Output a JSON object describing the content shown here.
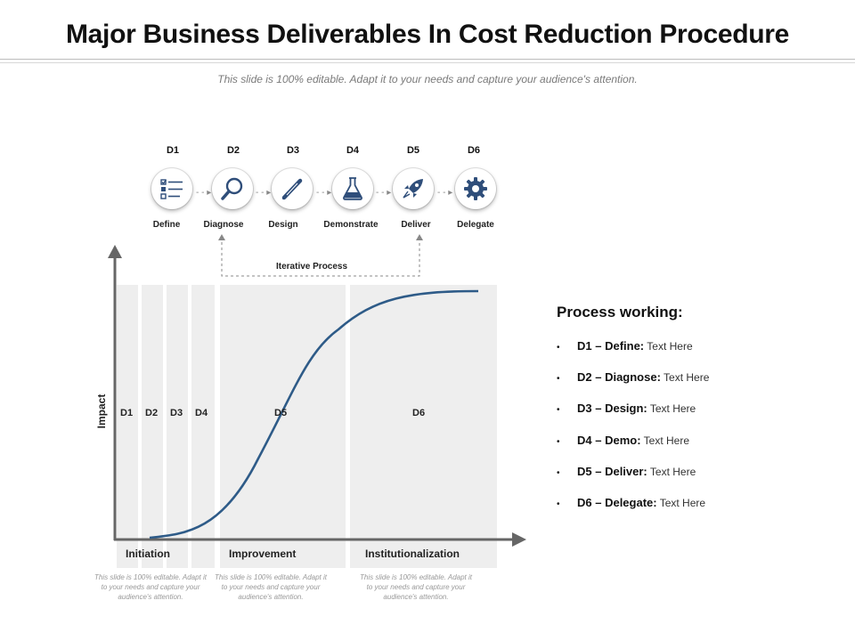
{
  "title": "Major Business Deliverables In Cost Reduction Procedure",
  "subtitle": "This slide is 100% editable. Adapt it to your needs and capture your audience's attention.",
  "steps": [
    {
      "code": "D1",
      "name": "Define",
      "icon": "checklist-icon"
    },
    {
      "code": "D2",
      "name": "Diagnose",
      "icon": "magnifier-icon"
    },
    {
      "code": "D3",
      "name": "Design",
      "icon": "pen-icon"
    },
    {
      "code": "D4",
      "name": "Demonstrate",
      "icon": "flask-icon"
    },
    {
      "code": "D5",
      "name": "Deliver",
      "icon": "rocket-icon"
    },
    {
      "code": "D6",
      "name": "Delegate",
      "icon": "gear-icon"
    }
  ],
  "iterative_label": "Iterative Process",
  "chart": {
    "y_label": "Impact",
    "zones": [
      "D1",
      "D2",
      "D3",
      "D4",
      "D5",
      "D6"
    ],
    "phases": [
      "Initiation",
      "Improvement",
      "Institutionalization"
    ],
    "notes": [
      "This slide is 100% editable. Adapt it to your needs and capture your audience's attention.",
      "This slide is 100% editable. Adapt it to your needs and capture your audience's attention.",
      "This slide is 100% editable. Adapt it to your needs and capture your audience's attention."
    ]
  },
  "panel": {
    "title": "Process working:",
    "items": [
      {
        "key": "D1 – Define:",
        "value": "Text Here"
      },
      {
        "key": "D2 – Diagnose:",
        "value": "Text Here"
      },
      {
        "key": "D3 – Design:",
        "value": "Text Here"
      },
      {
        "key": "D4 – Demo:",
        "value": "Text Here"
      },
      {
        "key": "D5 – Deliver:",
        "value": "Text Here"
      },
      {
        "key": "D6 – Delegate:",
        "value": "Text Here"
      }
    ]
  },
  "colors": {
    "curve": "#2e5b88",
    "axis": "#666666",
    "icon": "#2f4e7a",
    "band": "#eeeeee"
  }
}
